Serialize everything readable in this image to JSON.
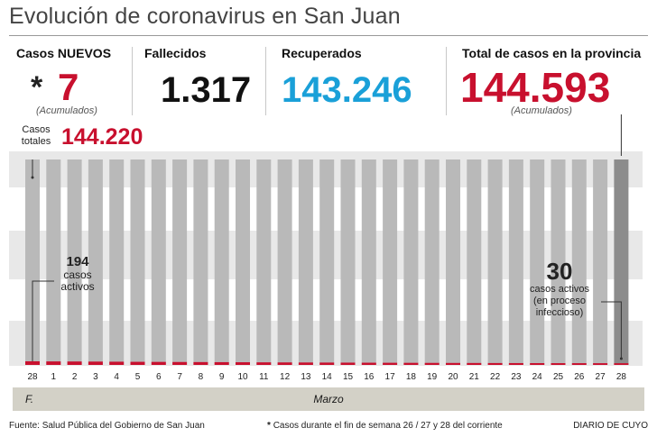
{
  "title": "Evolución de coronavirus en San Juan",
  "stats": {
    "new_label": "Casos NUEVOS",
    "new_asterisk": "*",
    "new_value": "7",
    "new_sub": "(Acumulados)",
    "deaths_label": "Fallecidos",
    "deaths_value": "1.317",
    "recovered_label": "Recuperados",
    "recovered_value": "143.246",
    "total_label": "Total de casos en la provincia",
    "total_value": "144.593",
    "total_sub": "(Acumulados)"
  },
  "colors": {
    "bar": "#b9b9b9",
    "last_bar": "#8c8c8c",
    "active": "#c8102e",
    "recovered": "#1aa0d8",
    "background_band": "#e8e8e8"
  },
  "chart_data": {
    "type": "bar",
    "month_label": "Marzo",
    "month_prefix": "F.",
    "categories": [
      "28",
      "1",
      "2",
      "3",
      "4",
      "5",
      "6",
      "7",
      "8",
      "9",
      "10",
      "11",
      "12",
      "13",
      "14",
      "15",
      "16",
      "17",
      "18",
      "19",
      "20",
      "21",
      "22",
      "23",
      "24",
      "25",
      "26",
      "27",
      "28"
    ],
    "active_values": [
      194,
      185,
      178,
      170,
      160,
      150,
      143,
      135,
      128,
      120,
      113,
      105,
      98,
      92,
      86,
      80,
      74,
      68,
      63,
      58,
      54,
      50,
      46,
      42,
      39,
      36,
      34,
      32,
      30
    ],
    "total_start": 144220,
    "total_end": 144593,
    "start_label": "Casos totales",
    "start_value_label": "144.220",
    "start_active_number": "194",
    "start_active_label": "casos activos",
    "end_active_number": "30",
    "end_active_label": "casos activos",
    "end_active_note": "(en proceso infeccioso)"
  },
  "footer": {
    "source": "Fuente: Salud Pública del Gobierno de San Juan",
    "note_asterisk": "*",
    "note": "Casos durante el fin de semana 26 / 27 y 28 del corriente",
    "brand": "DIARIO DE CUYO"
  }
}
